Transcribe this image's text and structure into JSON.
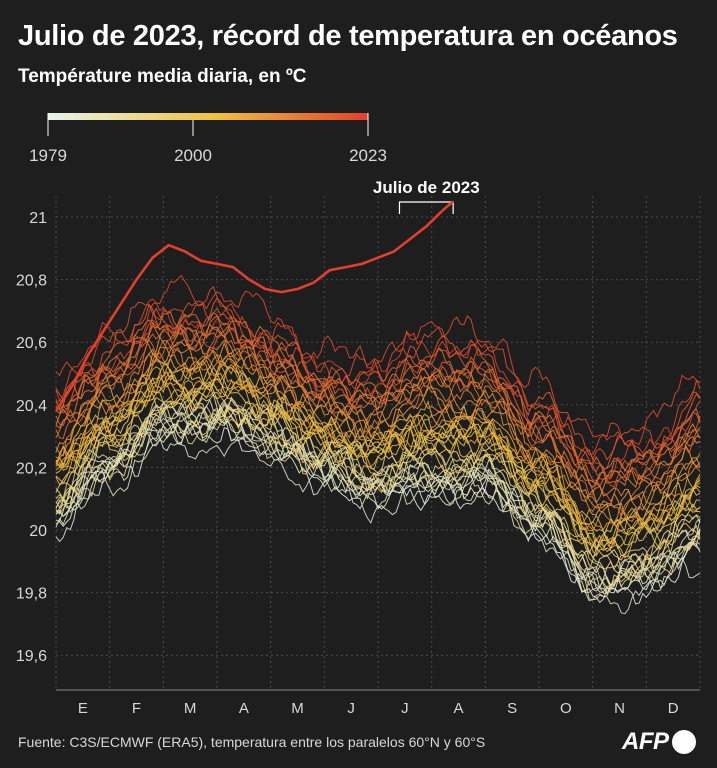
{
  "title": "Julio de 2023, récord de temperatura en océanos",
  "subtitle": "Température media diaria, en ºC",
  "source": "Fuente: C3S/ECMWF (ERA5), temperatura entre los paralelos 60°N y 60°S",
  "logo_text": "AFP",
  "colors": {
    "background": "#1e1e1e",
    "grid": "#4a4a4a",
    "text": "#ffffff",
    "scale_start": "#e6f3ec",
    "scale_mid": "#f0c23e",
    "scale_end": "#e2402c"
  },
  "chart_data": {
    "type": "line",
    "title": "Julio de 2023, récord de temperatura en océanos",
    "ylabel": "Température media diaria, en ºC",
    "xlabel": "",
    "ylim": [
      19.5,
      21.05
    ],
    "yticks": [
      19.6,
      19.8,
      20,
      20.2,
      20.4,
      20.6,
      20.8,
      21
    ],
    "ytick_labels": [
      "19,6",
      "19,8",
      "20",
      "20,2",
      "20,4",
      "20,6",
      "20,8",
      "21"
    ],
    "months": [
      "E",
      "F",
      "M",
      "A",
      "M",
      "J",
      "J",
      "A",
      "S",
      "O",
      "N",
      "D"
    ],
    "color_scale": {
      "label_start": "1979",
      "label_mid": "2000",
      "label_end": "2023",
      "year_start": 1979,
      "year_mid": 2000,
      "year_end": 2023
    },
    "annotation": "Julio de 2023",
    "annotation_range_month": [
      6.4,
      7.4
    ],
    "series_model": {
      "description": "One line per year 1979-2023, daily mean sea surface temperature (60N-60S). Values estimated from chart.",
      "month_points": [
        0,
        1,
        2,
        3,
        4,
        5,
        6,
        7,
        8,
        9,
        10,
        11,
        12
      ],
      "base_1979": [
        20.02,
        20.18,
        20.3,
        20.32,
        20.26,
        20.16,
        20.1,
        20.12,
        20.12,
        20.0,
        19.8,
        19.82,
        19.94
      ],
      "base_2022": [
        20.45,
        20.6,
        20.72,
        20.72,
        20.64,
        20.52,
        20.52,
        20.62,
        20.58,
        20.42,
        20.28,
        20.3,
        20.45
      ]
    },
    "series": [
      {
        "name": "2023",
        "months": [
          0.0,
          0.3,
          0.6,
          0.9,
          1.2,
          1.5,
          1.8,
          2.1,
          2.4,
          2.7,
          3.0,
          3.3,
          3.6,
          3.9,
          4.2,
          4.5,
          4.8,
          5.1,
          5.4,
          5.7,
          6.0,
          6.3,
          6.6,
          6.9,
          7.2,
          7.4
        ],
        "values": [
          20.38,
          20.46,
          20.56,
          20.64,
          20.72,
          20.8,
          20.87,
          20.91,
          20.89,
          20.86,
          20.85,
          20.84,
          20.8,
          20.77,
          20.76,
          20.77,
          20.79,
          20.83,
          20.84,
          20.85,
          20.87,
          20.89,
          20.93,
          20.97,
          21.02,
          21.05
        ]
      }
    ]
  }
}
